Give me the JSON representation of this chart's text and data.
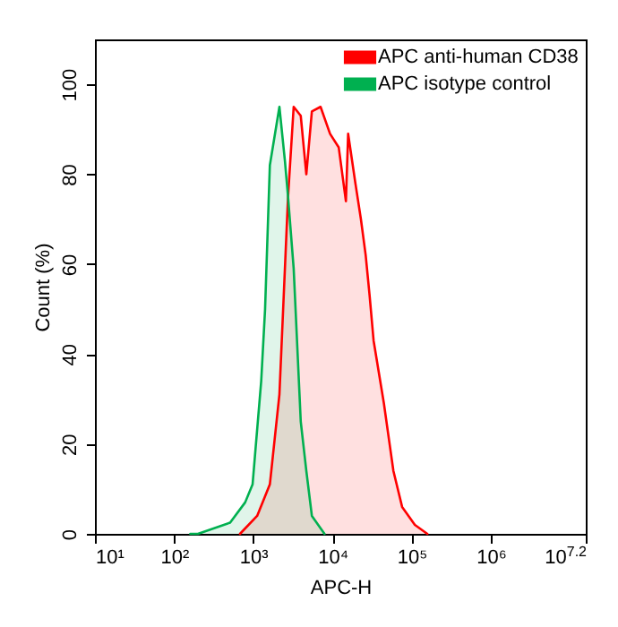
{
  "chart_data": {
    "type": "area",
    "xlabel": "APC-H",
    "ylabel": "Count  (%)",
    "log": "x",
    "legend": "top right",
    "grid": false,
    "xlim": [
      10,
      15848932
    ],
    "xticks": [
      {
        "value": 10,
        "label": "10¹"
      },
      {
        "value": 100,
        "label": "10²"
      },
      {
        "value": 1000,
        "label": "10³"
      },
      {
        "value": 10000,
        "label": "10⁴"
      },
      {
        "value": 100000,
        "label": "10⁵"
      },
      {
        "value": 1000000,
        "label": "10⁶"
      },
      {
        "value": 15848932,
        "label": "10$^{7.2}$"
      }
    ],
    "ylim": [
      0,
      110
    ],
    "yticks": [
      0,
      20,
      40,
      60,
      80,
      100
    ],
    "series": [
      {
        "name": "APC anti-human CD38",
        "color": "#ff0000",
        "x": [
          680,
          1120,
          1620,
          2140,
          2750,
          3240,
          3980,
          4680,
          5500,
          7080,
          9330,
          12000,
          14800,
          15800,
          19500,
          22900,
          26300,
          29500,
          33100,
          44700,
          58900,
          75900,
          110000,
          158000
        ],
        "values": [
          0,
          4,
          11,
          31,
          75,
          95,
          93,
          80,
          94,
          95,
          89,
          86,
          74,
          89,
          78,
          70,
          62,
          53,
          43,
          29,
          14,
          6,
          2,
          0
        ]
      },
      {
        "name": "APC isotype control",
        "color": "#00b050",
        "x": [
          160,
          200,
          510,
          790,
          980,
          1260,
          1410,
          1620,
          2140,
          2510,
          2750,
          3240,
          3980,
          4680,
          5500,
          7940
        ],
        "values": [
          0,
          0,
          2.5,
          7,
          11,
          34,
          50,
          82,
          95,
          83,
          75,
          59,
          25,
          14,
          4,
          0
        ]
      }
    ]
  }
}
